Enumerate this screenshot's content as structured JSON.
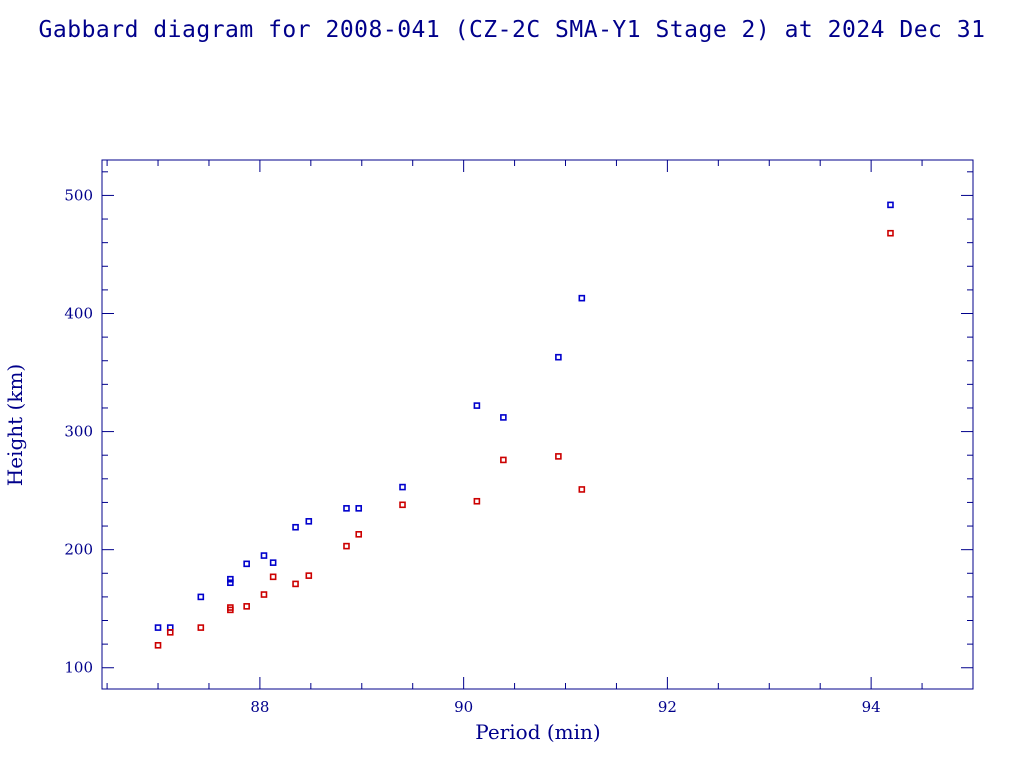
{
  "chart_data": {
    "type": "scatter",
    "title": "Gabbard diagram for 2008-041 (CZ-2C SMA-Y1 Stage 2) at 2024 Dec 31",
    "xlabel": "Period (min)",
    "ylabel": "Height (km)",
    "xlim": [
      86.45,
      95.0
    ],
    "ylim": [
      82,
      530
    ],
    "x_ticks": [
      88,
      90,
      92,
      94
    ],
    "y_ticks": [
      100,
      200,
      300,
      400,
      500
    ],
    "grid": false,
    "colors": {
      "axis": "#00008b",
      "apogee": "#0000cc",
      "perigee": "#cc0000"
    },
    "series": [
      {
        "role": "apogee",
        "points": [
          [
            87.0,
            134
          ],
          [
            87.12,
            134
          ],
          [
            87.42,
            160
          ],
          [
            87.71,
            175
          ],
          [
            87.71,
            172
          ],
          [
            87.87,
            188
          ],
          [
            88.04,
            195
          ],
          [
            88.13,
            189
          ],
          [
            88.35,
            219
          ],
          [
            88.48,
            224
          ],
          [
            88.85,
            235
          ],
          [
            88.97,
            235
          ],
          [
            89.4,
            253
          ],
          [
            90.13,
            322
          ],
          [
            90.39,
            312
          ],
          [
            90.93,
            363
          ],
          [
            91.16,
            413
          ],
          [
            94.19,
            492
          ]
        ]
      },
      {
        "role": "perigee",
        "points": [
          [
            87.0,
            119
          ],
          [
            87.12,
            130
          ],
          [
            87.42,
            134
          ],
          [
            87.71,
            151
          ],
          [
            87.71,
            149
          ],
          [
            87.87,
            152
          ],
          [
            88.04,
            162
          ],
          [
            88.13,
            177
          ],
          [
            88.35,
            171
          ],
          [
            88.48,
            178
          ],
          [
            88.85,
            203
          ],
          [
            88.97,
            213
          ],
          [
            89.4,
            238
          ],
          [
            90.13,
            241
          ],
          [
            90.39,
            276
          ],
          [
            90.93,
            279
          ],
          [
            91.16,
            251
          ],
          [
            94.19,
            468
          ]
        ]
      }
    ]
  }
}
